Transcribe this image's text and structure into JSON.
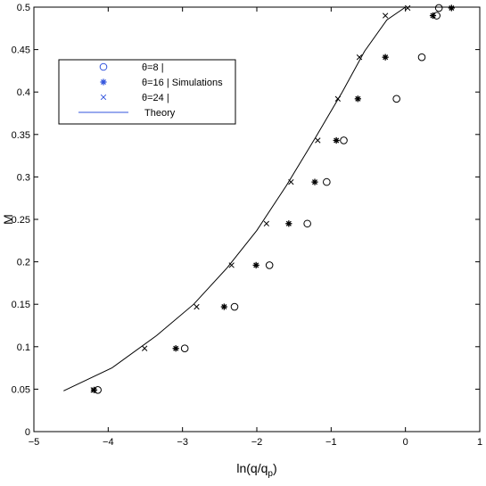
{
  "chart_data": {
    "type": "scatter",
    "title": "",
    "xlabel": "ln(q/q",
    "xlabel_sub": "p",
    "xlabel_close": ")",
    "ylabel": "M",
    "xlim": [
      -5,
      1
    ],
    "ylim": [
      0,
      0.5
    ],
    "xticks": [
      -5,
      -4,
      -3,
      -2,
      -1,
      0,
      1
    ],
    "xtick_labels": [
      "−5",
      "−4",
      "−3",
      "−2",
      "−1",
      "0",
      "1"
    ],
    "yticks": [
      0,
      0.05,
      0.1,
      0.15,
      0.2,
      0.25,
      0.3,
      0.35,
      0.4,
      0.45,
      0.5
    ],
    "ytick_labels": [
      "0",
      "0.05",
      "0.1",
      "0.15",
      "0.2",
      "0.25",
      "0.3",
      "0.35",
      "0.4",
      "0.45",
      "0.5"
    ],
    "grid": false,
    "legend_position": "top-left",
    "legend_entries": [
      {
        "label": "θ=8   |",
        "marker": "circle",
        "color": "#3355dd"
      },
      {
        "label": "θ=16 | Simulations",
        "marker": "asterisk",
        "color": "#3355dd"
      },
      {
        "label": "θ=24 |",
        "marker": "x",
        "color": "#3355dd"
      },
      {
        "label": "Theory",
        "marker": "line",
        "color": "#3355dd"
      }
    ],
    "series": [
      {
        "marker": "circle",
        "x": [
          -4.14,
          -2.97,
          -2.3,
          -1.83,
          -1.32,
          -1.06,
          -0.83,
          -0.12,
          0.22,
          0.42,
          0.45
        ],
        "y": [
          0.049,
          0.098,
          0.147,
          0.196,
          0.245,
          0.294,
          0.343,
          0.392,
          0.441,
          0.49,
          0.499
        ]
      },
      {
        "marker": "asterisk",
        "x": [
          -4.19,
          -3.09,
          -2.44,
          -2.01,
          -1.57,
          -1.22,
          -0.93,
          -0.64,
          -0.27,
          0.37,
          0.62
        ],
        "y": [
          0.049,
          0.098,
          0.147,
          0.196,
          0.245,
          0.294,
          0.343,
          0.392,
          0.441,
          0.49,
          0.499
        ]
      },
      {
        "marker": "x",
        "x": [
          -4.2,
          -3.51,
          -2.81,
          -2.34,
          -1.87,
          -1.54,
          -1.18,
          -0.91,
          -0.62,
          -0.27,
          0.03
        ],
        "y": [
          0.049,
          0.098,
          0.147,
          0.196,
          0.245,
          0.294,
          0.343,
          0.392,
          0.441,
          0.49,
          0.499
        ]
      },
      {
        "marker": "line",
        "x": [
          -4.6,
          -3.95,
          -3.35,
          -2.85,
          -2.4,
          -2.0,
          -1.6,
          -1.2,
          -0.85,
          -0.55,
          -0.25,
          0.0
        ],
        "y": [
          0.048,
          0.075,
          0.113,
          0.15,
          0.193,
          0.237,
          0.29,
          0.348,
          0.4,
          0.448,
          0.485,
          0.5
        ]
      }
    ]
  }
}
